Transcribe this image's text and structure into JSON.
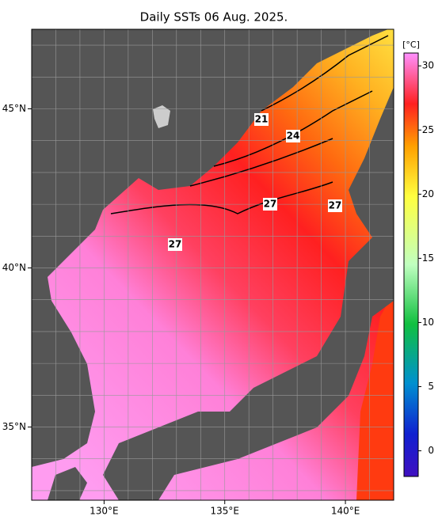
{
  "title": "Daily SSTs 06 Aug. 2025.",
  "map": {
    "lonlim": [
      127,
      142
    ],
    "latlim": [
      32.7,
      47.5
    ],
    "lon_ticks": [
      {
        "value": 130,
        "label": "130°E"
      },
      {
        "value": 135,
        "label": "135°E"
      },
      {
        "value": 140,
        "label": "140°E"
      }
    ],
    "lat_ticks": [
      {
        "value": 45,
        "label": "45°N"
      },
      {
        "value": 40,
        "label": "40°N"
      },
      {
        "value": 35,
        "label": "35°N"
      }
    ],
    "grid_lons": [
      128,
      129,
      130,
      131,
      132,
      133,
      134,
      135,
      136,
      137,
      138,
      139,
      140,
      141
    ],
    "grid_lats": [
      33,
      34,
      35,
      36,
      37,
      38,
      39,
      40,
      41,
      42,
      43,
      44,
      45,
      46,
      47
    ],
    "contour_labels": [
      "21",
      "24",
      "27",
      "27",
      "27"
    ]
  },
  "colorbar": {
    "label": "[°C]",
    "range": [
      -2,
      31
    ],
    "ticks": [
      0,
      5,
      10,
      15,
      20,
      25,
      30
    ]
  }
}
